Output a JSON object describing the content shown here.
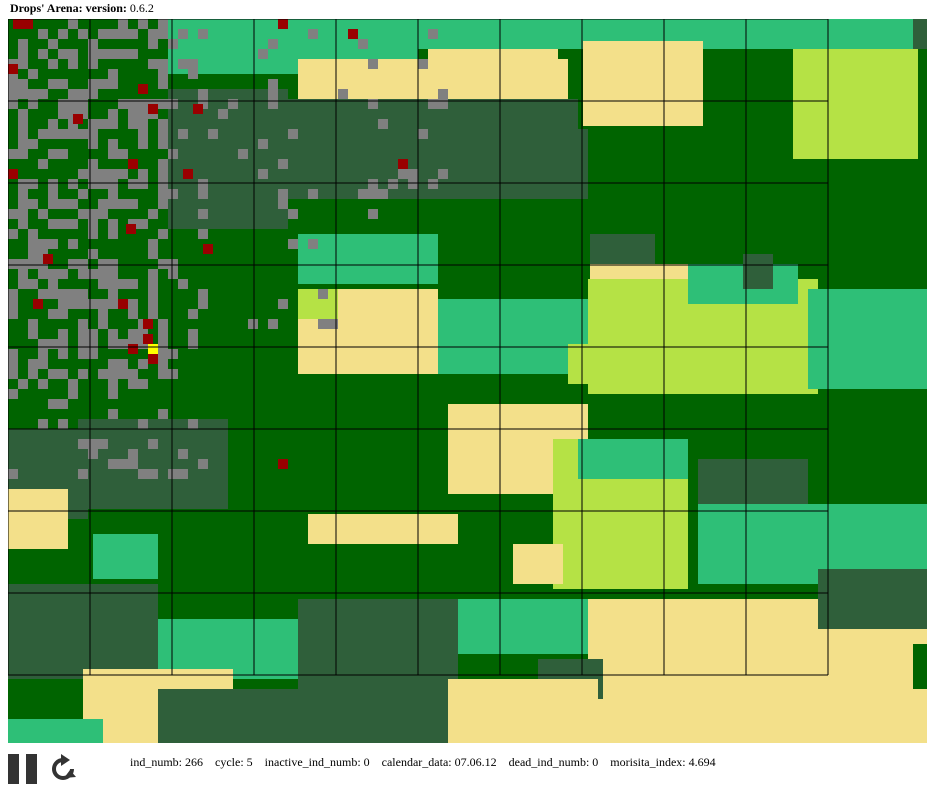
{
  "title": {
    "label": "Drops' Arena:",
    "version_label": "version:",
    "version": "0.6.2"
  },
  "colors": {
    "forest": "#006400",
    "dark_forest": "#2f5f3a",
    "meadow": "#2ebf77",
    "light_grass": "#b5e245",
    "sand": "#f3e08a",
    "individual": "#808080",
    "dead": "#990000",
    "highlight": "#ffff00",
    "grid": "#000000"
  },
  "stats": [
    {
      "key": "ind_numb:",
      "value": "266"
    },
    {
      "key": "cycle:",
      "value": "5"
    },
    {
      "key": "inactive_ind_numb:",
      "value": "0"
    },
    {
      "key": "calendar_data:",
      "value": "07.06.12"
    },
    {
      "key": "dead_ind_numb:",
      "value": "0"
    },
    {
      "key": "morisita_index:",
      "value": "4.694"
    }
  ],
  "controls": {
    "pause_icon": "pause-icon",
    "reset_icon": "reset-icon"
  }
}
